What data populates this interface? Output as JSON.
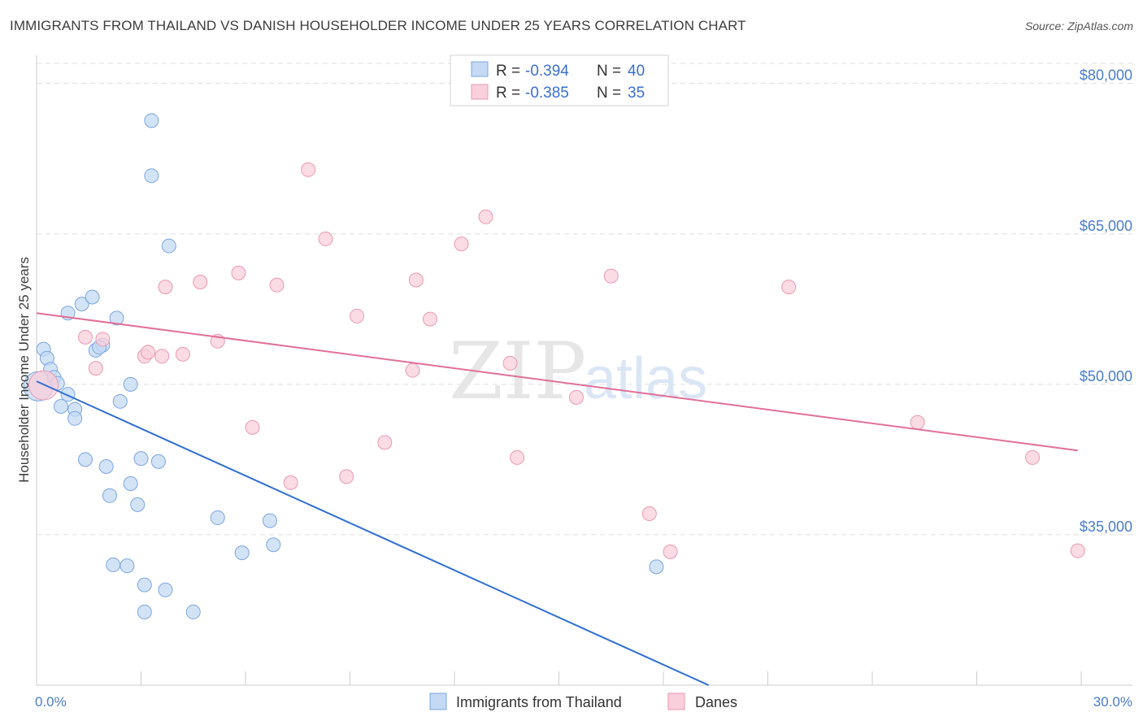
{
  "title": "IMMIGRANTS FROM THAILAND VS DANISH HOUSEHOLDER INCOME UNDER 25 YEARS CORRELATION CHART",
  "source": "Source: ZipAtlas.com",
  "watermark": {
    "zip": "ZIP",
    "atlas": "atlas"
  },
  "colors": {
    "blue_fill": "#c4d9f3",
    "blue_stroke": "#7aa6e0",
    "blue_line": "#2f6fd4",
    "pink_fill": "#f9cfdb",
    "pink_stroke": "#e79ab2",
    "pink_line": "#e07098",
    "grid": "#dddddd",
    "tick_label": "#4a7cd0"
  },
  "legend": {
    "rows": [
      {
        "r_label": "R = ",
        "r_value": "-0.394",
        "n_label": "N = ",
        "n_value": "40"
      },
      {
        "r_label": "R = ",
        "r_value": "-0.385",
        "n_label": "N = ",
        "n_value": "35"
      }
    ]
  },
  "chart_data": {
    "type": "scatter",
    "title": "IMMIGRANTS FROM THAILAND VS DANISH HOUSEHOLDER INCOME UNDER 25 YEARS CORRELATION CHART",
    "xlabel": "",
    "ylabel": "Householder Income Under 25 years",
    "xlim": [
      0,
      30
    ],
    "ylim": [
      20000,
      82000
    ],
    "x_tick_labels": [
      "0.0%",
      "30.0%"
    ],
    "y_ticks": [
      35000,
      50000,
      65000,
      80000
    ],
    "y_tick_labels": [
      "$35,000",
      "$50,000",
      "$65,000",
      "$80,000"
    ],
    "grid": true,
    "legend_position": "bottom-center",
    "series": [
      {
        "name": "Immigrants from Thailand",
        "r": -0.394,
        "n": 40,
        "trend": {
          "x0": 0.0,
          "y0": 50300,
          "x1": 19.3,
          "y1": 20000
        },
        "points": [
          [
            0.05,
            49800,
            "l"
          ],
          [
            0.2,
            53500,
            "n"
          ],
          [
            0.3,
            52600,
            "n"
          ],
          [
            0.4,
            51500,
            "n"
          ],
          [
            0.5,
            50700,
            "n"
          ],
          [
            0.6,
            50100,
            "n"
          ],
          [
            0.9,
            49000,
            "n"
          ],
          [
            0.7,
            47800,
            "n"
          ],
          [
            1.1,
            47500,
            "n"
          ],
          [
            1.1,
            46600,
            "n"
          ],
          [
            0.9,
            57100,
            "n"
          ],
          [
            1.3,
            58000,
            "n"
          ],
          [
            1.6,
            58700,
            "n"
          ],
          [
            1.7,
            53400,
            "n"
          ],
          [
            1.9,
            53900,
            "n"
          ],
          [
            2.3,
            56600,
            "n"
          ],
          [
            2.4,
            48300,
            "n"
          ],
          [
            2.7,
            50000,
            "n"
          ],
          [
            3.3,
            76300,
            "n"
          ],
          [
            3.3,
            70800,
            "n"
          ],
          [
            3.8,
            63800,
            "n"
          ],
          [
            1.4,
            42500,
            "n"
          ],
          [
            2.0,
            41800,
            "n"
          ],
          [
            2.1,
            38900,
            "n"
          ],
          [
            2.7,
            40100,
            "n"
          ],
          [
            2.9,
            38000,
            "n"
          ],
          [
            3.0,
            42600,
            "n"
          ],
          [
            3.5,
            42300,
            "n"
          ],
          [
            2.2,
            32000,
            "n"
          ],
          [
            2.6,
            31900,
            "n"
          ],
          [
            3.1,
            30000,
            "n"
          ],
          [
            3.7,
            29500,
            "n"
          ],
          [
            3.1,
            27300,
            "n"
          ],
          [
            4.5,
            27300,
            "n"
          ],
          [
            5.2,
            36700,
            "n"
          ],
          [
            5.9,
            33200,
            "n"
          ],
          [
            6.7,
            36400,
            "n"
          ],
          [
            6.8,
            34000,
            "n"
          ],
          [
            17.8,
            31800,
            "n"
          ],
          [
            1.8,
            53700,
            "n"
          ]
        ]
      },
      {
        "name": "Danes",
        "r": -0.385,
        "n": 35,
        "trend": {
          "x0": 0.0,
          "y0": 57100,
          "x1": 29.9,
          "y1": 43400
        },
        "points": [
          [
            0.2,
            49900,
            "l"
          ],
          [
            1.4,
            54700,
            "n"
          ],
          [
            1.9,
            54500,
            "n"
          ],
          [
            1.7,
            51600,
            "n"
          ],
          [
            3.1,
            52800,
            "n"
          ],
          [
            3.6,
            52800,
            "n"
          ],
          [
            3.2,
            53200,
            "n"
          ],
          [
            4.2,
            53000,
            "n"
          ],
          [
            3.7,
            59700,
            "n"
          ],
          [
            4.7,
            60200,
            "n"
          ],
          [
            5.2,
            54300,
            "n"
          ],
          [
            5.8,
            61100,
            "n"
          ],
          [
            6.2,
            45700,
            "n"
          ],
          [
            6.9,
            59900,
            "n"
          ],
          [
            7.3,
            40200,
            "n"
          ],
          [
            7.8,
            71400,
            "n"
          ],
          [
            8.3,
            64500,
            "n"
          ],
          [
            8.9,
            40800,
            "n"
          ],
          [
            9.2,
            56800,
            "n"
          ],
          [
            10.0,
            44200,
            "n"
          ],
          [
            10.8,
            51400,
            "n"
          ],
          [
            10.9,
            60400,
            "n"
          ],
          [
            11.3,
            56500,
            "n"
          ],
          [
            12.2,
            64000,
            "n"
          ],
          [
            12.9,
            66700,
            "n"
          ],
          [
            13.6,
            52100,
            "n"
          ],
          [
            13.8,
            42700,
            "n"
          ],
          [
            15.5,
            48700,
            "n"
          ],
          [
            16.5,
            60800,
            "n"
          ],
          [
            17.6,
            37100,
            "n"
          ],
          [
            18.2,
            33300,
            "n"
          ],
          [
            21.6,
            59700,
            "n"
          ],
          [
            25.3,
            46200,
            "n"
          ],
          [
            28.6,
            42700,
            "n"
          ],
          [
            29.9,
            33400,
            "n"
          ]
        ]
      }
    ]
  }
}
